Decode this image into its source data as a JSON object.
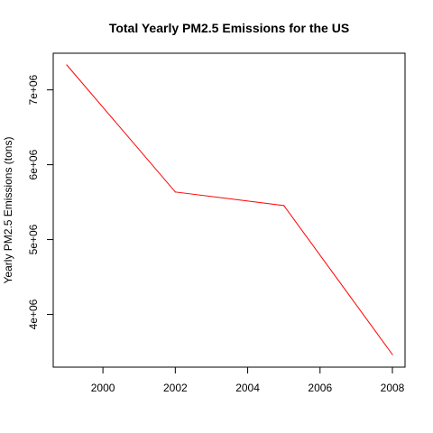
{
  "chart_data": {
    "type": "line",
    "title": "Total Yearly PM2.5 Emissions for the US",
    "xlabel": "",
    "ylabel": "Yearly PM2.5 Emissions (tons)",
    "x": [
      1999,
      2002,
      2005,
      2008
    ],
    "series": [
      {
        "values": [
          7332967,
          5635780,
          5454703,
          3464206
        ]
      }
    ],
    "line_color": "#ff0000",
    "xlim": [
      1999,
      2008
    ],
    "ylim": [
      3464206,
      7332967
    ],
    "x_ticks": [
      2000,
      2002,
      2004,
      2006,
      2008
    ],
    "x_tick_labels": [
      "2000",
      "2002",
      "2004",
      "2006",
      "2008"
    ],
    "y_ticks": [
      4000000,
      5000000,
      6000000,
      7000000
    ],
    "y_tick_labels": [
      "4e+06",
      "5e+06",
      "6e+06",
      "7e+06"
    ],
    "grid": false,
    "legend": "none"
  }
}
